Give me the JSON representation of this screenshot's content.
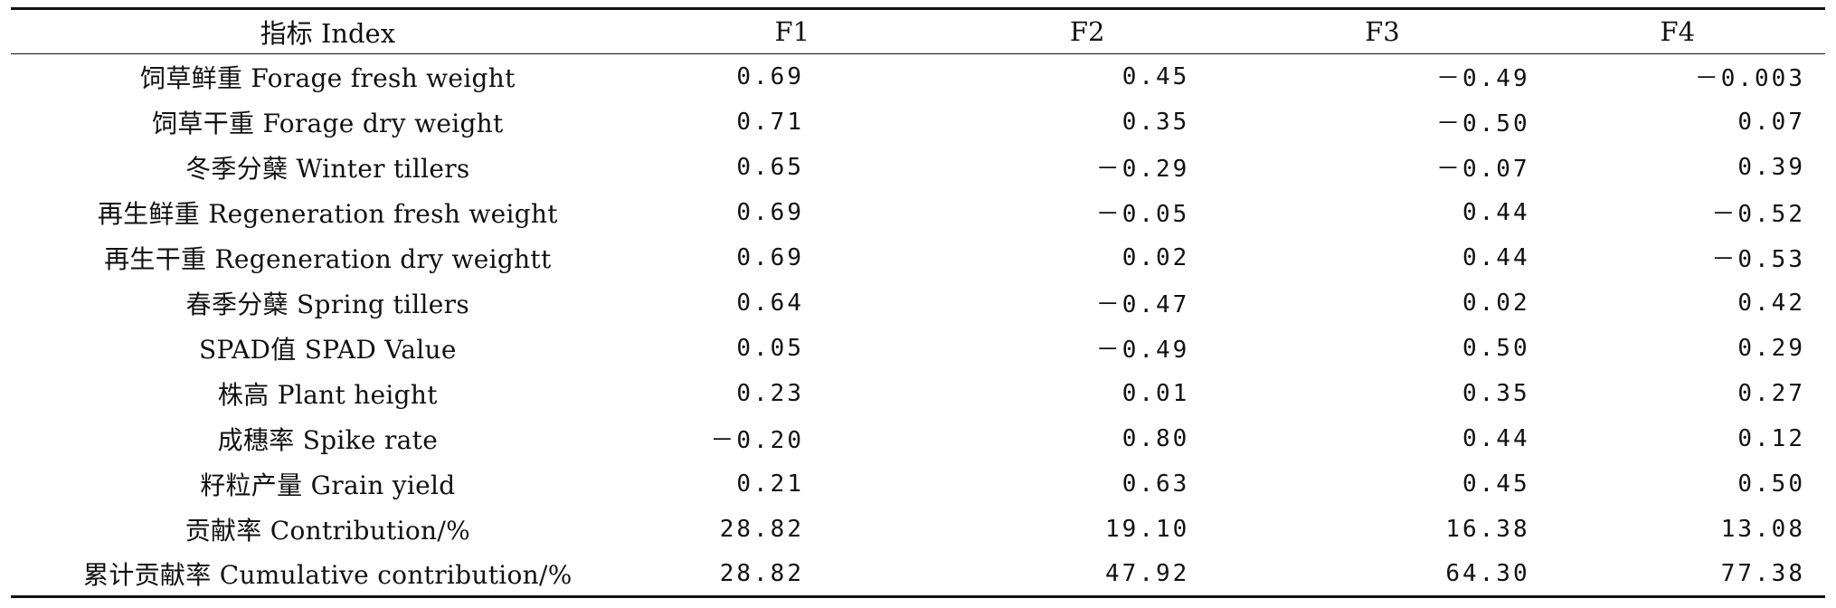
{
  "table": {
    "headers": [
      "指标 Index",
      "F1",
      "F2",
      "F3",
      "F4"
    ],
    "rows": [
      {
        "index": "饲草鲜重 Forage fresh weight",
        "values": [
          "0.69",
          "0.45",
          "－0.49",
          "－0.003"
        ]
      },
      {
        "index": "饲草干重 Forage dry weight",
        "values": [
          "0.71",
          "0.35",
          "－0.50",
          "0.07"
        ]
      },
      {
        "index": "冬季分蘖 Winter tillers",
        "values": [
          "0.65",
          "－0.29",
          "－0.07",
          "0.39"
        ]
      },
      {
        "index": "再生鲜重 Regeneration fresh weight",
        "values": [
          "0.69",
          "－0.05",
          "0.44",
          "－0.52"
        ]
      },
      {
        "index": "再生干重 Regeneration dry weightt",
        "values": [
          "0.69",
          "0.02",
          "0.44",
          "－0.53"
        ]
      },
      {
        "index": "春季分蘖 Spring tillers",
        "values": [
          "0.64",
          "－0.47",
          "0.02",
          "0.42"
        ]
      },
      {
        "index": "SPAD值 SPAD Value",
        "values": [
          "0.05",
          "－0.49",
          "0.50",
          "0.29"
        ]
      },
      {
        "index": "株高 Plant height",
        "values": [
          "0.23",
          "0.01",
          "0.35",
          "0.27"
        ]
      },
      {
        "index": "成穗率 Spike rate",
        "values": [
          "－0.20",
          "0.80",
          "0.44",
          "0.12"
        ]
      },
      {
        "index": "籽粒产量 Grain yield",
        "values": [
          "0.21",
          "0.63",
          "0.45",
          "0.50"
        ]
      },
      {
        "index": "贡献率 Contribution/%",
        "values": [
          "28.82",
          "19.10",
          "16.38",
          "13.08"
        ]
      },
      {
        "index": "累计贡献率 Cumulative contribution/%",
        "values": [
          "28.82",
          "47.92",
          "64.30",
          "77.38"
        ]
      }
    ]
  }
}
